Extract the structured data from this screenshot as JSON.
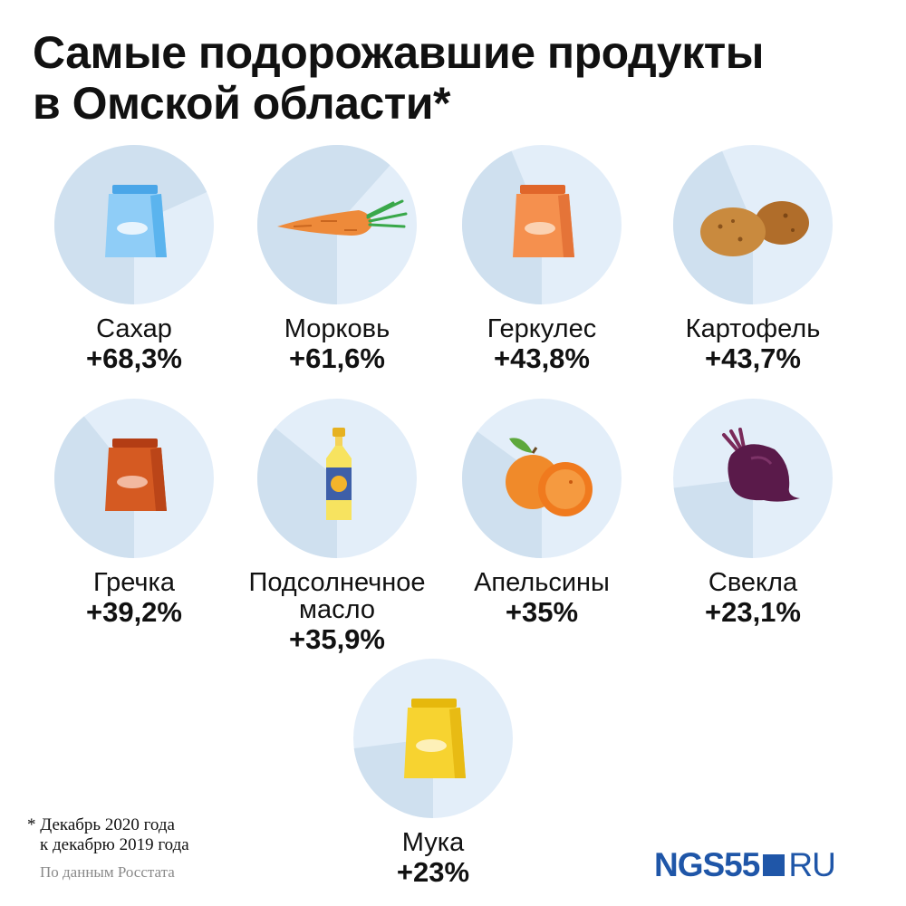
{
  "title_line1": "Самые подорожавшие продукты",
  "title_line2": "в Омской области*",
  "footnote_line1": "* Декабрь 2020 года",
  "footnote_line2": "к декабрю 2019 года",
  "source": "По данным Росстата",
  "brand": {
    "main": "NGS55",
    "suffix": "RU"
  },
  "colors": {
    "pie_light": "#e3eef9",
    "pie_dark": "#cfe0ef",
    "brand": "#1f56a8"
  },
  "chart_data": {
    "type": "pie",
    "title": "Самые подорожавшие продукты в Омской области*",
    "unit": "%",
    "items": [
      {
        "name": "Сахар",
        "value": 68.3,
        "label": "+68,3%",
        "icon": "sugar-bag-icon"
      },
      {
        "name": "Морковь",
        "value": 61.6,
        "label": "+61,6%",
        "icon": "carrot-icon"
      },
      {
        "name": "Геркулес",
        "value": 43.8,
        "label": "+43,8%",
        "icon": "oats-bag-icon"
      },
      {
        "name": "Картофель",
        "value": 43.7,
        "label": "+43,7%",
        "icon": "potato-icon"
      },
      {
        "name": "Гречка",
        "value": 39.2,
        "label": "+39,2%",
        "icon": "buckwheat-bag-icon"
      },
      {
        "name": "Подсолнечное масло",
        "value": 35.9,
        "label": "+35,9%",
        "icon": "oil-bottle-icon"
      },
      {
        "name": "Апельсины",
        "value": 35,
        "label": "+35%",
        "icon": "orange-icon"
      },
      {
        "name": "Свекла",
        "value": 23.1,
        "label": "+23,1%",
        "icon": "beet-icon"
      },
      {
        "name": "Мука",
        "value": 23,
        "label": "+23%",
        "icon": "flour-bag-icon"
      }
    ]
  }
}
